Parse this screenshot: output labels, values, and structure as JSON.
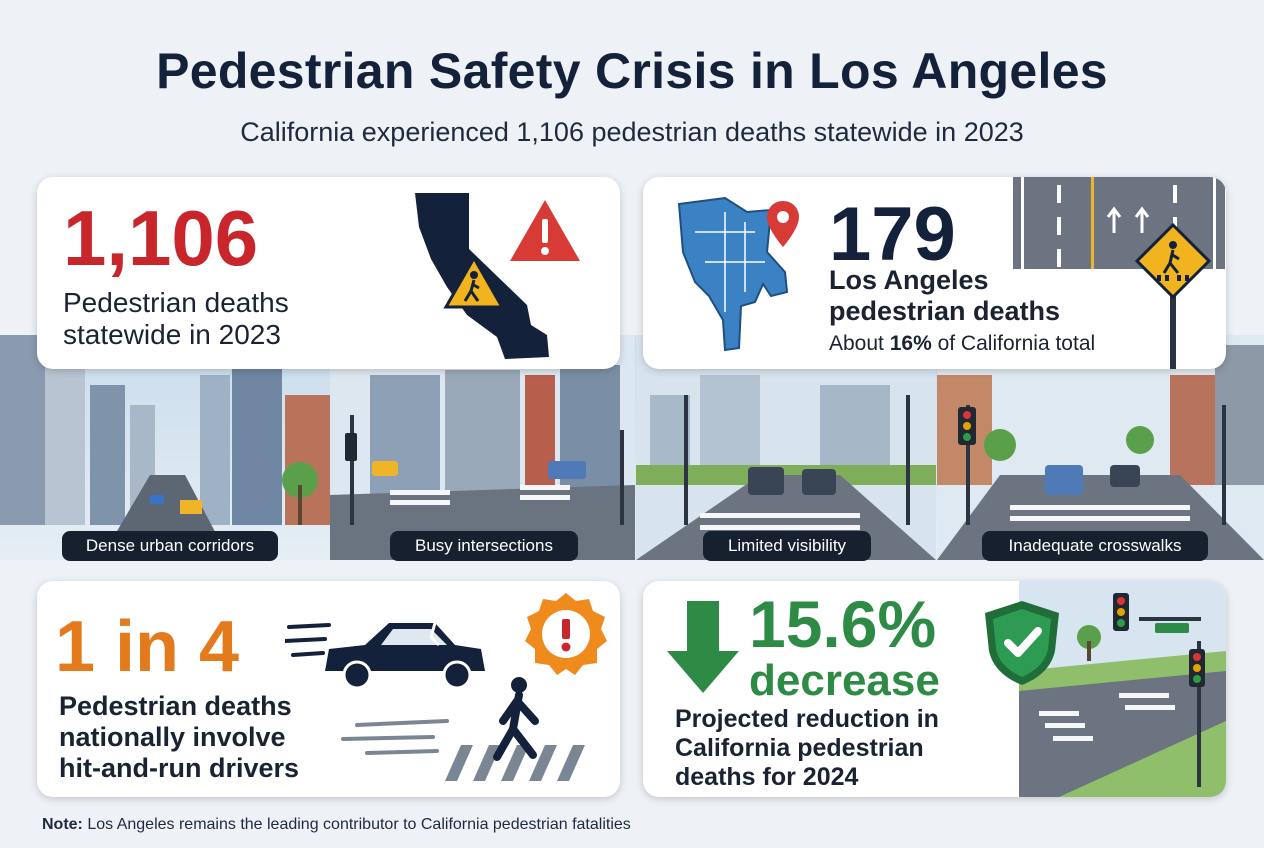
{
  "header": {
    "title": "Pedestrian Safety Crisis in Los Angeles",
    "subtitle": "California experienced 1,106 pedestrian deaths statewide in 2023"
  },
  "stats": [
    {
      "value": "1,106",
      "label_line1": "Pedestrian deaths",
      "label_line2": "statewide in 2023",
      "color": "#c8262b"
    },
    {
      "value": "179",
      "label_line1": "Los Angeles",
      "label_line2": "pedestrian deaths",
      "share_prefix": "About ",
      "share_value": "16%",
      "share_suffix": " of California total",
      "color": "#13213a"
    },
    {
      "value": "1 in 4",
      "label_line1": "Pedestrian deaths",
      "label_line2": "nationally involve",
      "label_line3": "hit-and-run drivers",
      "color": "#e37a1c"
    },
    {
      "value_line1": "15.6%",
      "value_line2": "decrease",
      "label_line1": "Projected reduction in",
      "label_line2": "California pedestrian",
      "label_line3": "deaths for 2024",
      "color": "#2e8b45"
    }
  ],
  "scenes": [
    {
      "label": "Dense urban corridors"
    },
    {
      "label": "Busy intersections"
    },
    {
      "label": "Limited visibility"
    },
    {
      "label": "Inadequate crosswalks"
    }
  ],
  "footer": {
    "note_label": "Note:",
    "note_text": " Los Angeles remains the leading contributor to California pedestrian fatalities"
  },
  "icons": [
    "california-map-icon",
    "pedestrian-warning-icon",
    "alert-triangle-icon",
    "los-angeles-map-icon",
    "location-pin-icon",
    "road-lanes-icon",
    "pedestrian-crossing-sign-icon",
    "crashed-car-icon",
    "alert-badge-icon",
    "pedestrian-walking-icon",
    "down-arrow-icon",
    "shield-check-icon",
    "traffic-light-icon"
  ],
  "colors": {
    "red": "#c8262b",
    "navy": "#13213a",
    "orange": "#e37a1c",
    "green": "#2e8b45",
    "map_blue": "#3b82c4"
  }
}
